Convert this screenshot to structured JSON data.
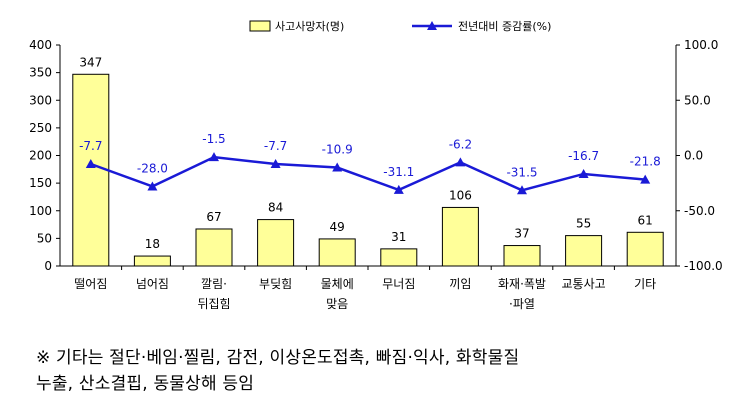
{
  "chart_data": {
    "type": "bar",
    "categories": [
      [
        "떨어짐"
      ],
      [
        "넘어짐"
      ],
      [
        "깔림·",
        "뒤집힘"
      ],
      [
        "부딪힘"
      ],
      [
        "물체에",
        "맞음"
      ],
      [
        "무너짐"
      ],
      [
        "끼임"
      ],
      [
        "화재·폭발",
        "·파열"
      ],
      [
        "교통사고"
      ],
      [
        "기타"
      ]
    ],
    "series": [
      {
        "name": "사고사망자(명)",
        "type": "bar",
        "axis": "left",
        "values": [
          347,
          18,
          67,
          84,
          49,
          31,
          106,
          37,
          55,
          61
        ],
        "labels": [
          "347",
          "18",
          "67",
          "84",
          "49",
          "31",
          "106",
          "37",
          "55",
          "61"
        ]
      },
      {
        "name": "전년대비 증감률(%)",
        "type": "line",
        "axis": "right",
        "values": [
          -7.7,
          -28.0,
          -1.5,
          -7.7,
          -10.9,
          -31.1,
          -6.2,
          -31.5,
          -16.7,
          -21.8
        ],
        "labels": [
          "-7.7",
          "-28.0",
          "-1.5",
          "-7.7",
          "-10.9",
          "-31.1",
          "-6.2",
          "-31.5",
          "-16.7",
          "-21.8"
        ]
      }
    ],
    "y_left": {
      "min": 0,
      "max": 400,
      "ticks": [
        "0",
        "50",
        "100",
        "150",
        "200",
        "250",
        "300",
        "350",
        "400"
      ]
    },
    "y_right": {
      "min": -100,
      "max": 100,
      "ticks": [
        "-100.0",
        "-50.0",
        "0.0",
        "50.0",
        "100.0"
      ]
    },
    "legend_position": "top-center",
    "colors": {
      "bar_fill": "#ffff99",
      "bar_stroke": "#000000",
      "line": "#1a1ad6",
      "marker": "#1a1ad6"
    }
  },
  "footnote": {
    "line1": "※ 기타는 절단·베임·찔림, 감전, 이상온도접촉, 빠짐·익사, 화학물질",
    "line2": "누출, 산소결핍, 동물상해 등임"
  }
}
